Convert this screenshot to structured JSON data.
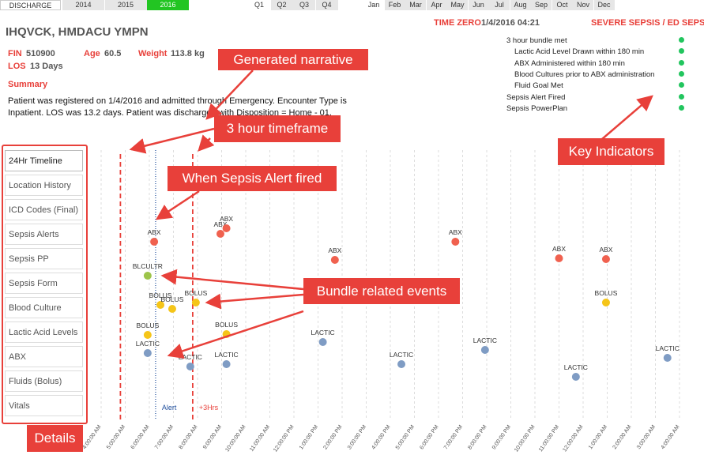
{
  "top_bar": {
    "label": "DISCHARGE",
    "years": [
      "2014",
      "2015",
      "2016"
    ],
    "selected_year": 2,
    "quarters": [
      "Q1",
      "Q2",
      "Q3",
      "Q4"
    ],
    "selected_quarter": 0,
    "months": [
      "Jan",
      "Feb",
      "Mar",
      "Apr",
      "May",
      "Jun",
      "Jul",
      "Aug",
      "Sep",
      "Oct",
      "Nov",
      "Dec"
    ],
    "selected_month": 0
  },
  "header": {
    "patient_name": "IHQVCK, HMDACU YMPN",
    "time_zero_label": "TIME ZERO",
    "time_zero": "1/4/2016 04:21",
    "condition": "SEVERE SEPSIS / ED SEPSIS"
  },
  "fields": [
    {
      "label": "FIN",
      "value": "510900"
    },
    {
      "label": "Age",
      "value": "60.5"
    },
    {
      "label": "Weight",
      "value": "113.8 kg"
    },
    {
      "label": "LOS",
      "value": "13 Days"
    }
  ],
  "summary": {
    "title": "Summary",
    "text": "Patient was registered on 1/4/2016 and admitted through Emergency. Encounter Type is Inpatient. LOS was 13.2 days. Patient was discharged with Disposition = Home - 01."
  },
  "indicators": [
    {
      "label": "3 hour bundle met",
      "indent": false
    },
    {
      "label": "Lactic Acid Level Drawn within 180 min",
      "indent": true
    },
    {
      "label": "ABX Administered within 180 min",
      "indent": true
    },
    {
      "label": "Blood Cultures prior to ABX administration",
      "indent": true
    },
    {
      "label": "Fluid Goal Met",
      "indent": true
    },
    {
      "label": "Sepsis Alert Fired",
      "indent": false
    },
    {
      "label": "Sepsis PowerPlan",
      "indent": false
    }
  ],
  "indicator_color": "#22c55e",
  "nav": {
    "items": [
      "24Hr Timeline",
      "Location History",
      "ICD Codes (Final)",
      "Sepsis Alerts",
      "Sepsis PP",
      "Sepsis Form",
      "Blood Culture",
      "Lactic Acid Levels",
      "ABX",
      "Fluids (Bolus)",
      "Vitals"
    ],
    "selected": 0
  },
  "callouts": [
    "Generated narrative",
    "3 hour timeframe",
    "When Sepsis Alert fired",
    "Bundle related events",
    "Key Indicators",
    "Details"
  ],
  "chart_data": {
    "type": "scatter",
    "xlim": [
      3.6,
      28.6
    ],
    "xticks": [
      {
        "value": 4,
        "label": "4:00:00 AM"
      },
      {
        "value": 5,
        "label": "5:00:00 AM"
      },
      {
        "value": 6,
        "label": "6:00:00 AM"
      },
      {
        "value": 7,
        "label": "7:00:00 AM"
      },
      {
        "value": 8,
        "label": "8:00:00 AM"
      },
      {
        "value": 9,
        "label": "9:00:00 AM"
      },
      {
        "value": 10,
        "label": "10:00:00 AM"
      },
      {
        "value": 11,
        "label": "11:00:00 AM"
      },
      {
        "value": 12,
        "label": "12:00:00 PM"
      },
      {
        "value": 13,
        "label": "1:00:00 PM"
      },
      {
        "value": 14,
        "label": "2:00:00 PM"
      },
      {
        "value": 15,
        "label": "3:00:00 PM"
      },
      {
        "value": 16,
        "label": "4:00:00 PM"
      },
      {
        "value": 17,
        "label": "5:00:00 PM"
      },
      {
        "value": 18,
        "label": "6:00:00 PM"
      },
      {
        "value": 19,
        "label": "7:00:00 PM"
      },
      {
        "value": 20,
        "label": "8:00:00 PM"
      },
      {
        "value": 21,
        "label": "9:00:00 PM"
      },
      {
        "value": 22,
        "label": "10:00:00 PM"
      },
      {
        "value": 23,
        "label": "11:00:00 PM"
      },
      {
        "value": 24,
        "label": "12:00:00 AM"
      },
      {
        "value": 25,
        "label": "1:00:00 AM"
      },
      {
        "value": 26,
        "label": "2:00:00 AM"
      },
      {
        "value": 27,
        "label": "3:00:00 AM"
      },
      {
        "value": 28,
        "label": "4:00:00 AM"
      }
    ],
    "grid": true,
    "markers": [
      {
        "label": null,
        "x": 4.8,
        "color": "#e8403a"
      },
      {
        "label": "Alert",
        "x": 6.26,
        "color": "#1f4e9c"
      },
      {
        "label": "+3Hrs",
        "x": 7.8,
        "color": "#e8403a"
      }
    ],
    "series": [
      {
        "name": "ABX",
        "color": "#f0614f",
        "x": [
          6.2,
          8.95,
          9.2,
          13.7,
          18.7,
          23.0,
          24.95
        ]
      },
      {
        "name": "BLCULTR",
        "color": "#9dc44a",
        "x": [
          5.93
        ]
      },
      {
        "name": "BOLUS",
        "color": "#f5c518",
        "x": [
          6.46,
          6.95,
          7.93,
          24.95,
          5.93,
          9.2
        ]
      },
      {
        "name": "LACTIC",
        "color": "#7f9cc4",
        "x": [
          5.93,
          7.7,
          9.2,
          13.2,
          16.46,
          19.93,
          23.7,
          27.5
        ]
      }
    ]
  }
}
